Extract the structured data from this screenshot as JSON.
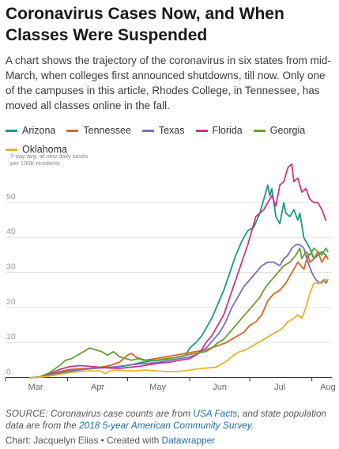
{
  "header": {
    "title": "Coronavirus Cases Now, and When Classes Were Suspended",
    "description": "A chart shows the trajectory of the coronavirus in six states from mid-March, when colleges first announced shutdowns, till now. Only one of the campuses in this article, Rhodes College, in Tennessee, has moved all classes online in the fall."
  },
  "chart_data": {
    "type": "line",
    "title": "Coronavirus Cases Now, and When Classes Were Suspended",
    "ylabel": "7-day avg. of new daily cases per 100K residents",
    "xlabel": "",
    "x_ticks": [
      "Mar",
      "Apr",
      "May",
      "Jun",
      "Jul",
      "Aug"
    ],
    "y_ticks": [
      0,
      10,
      20,
      30,
      40,
      50
    ],
    "ylim": [
      0,
      60
    ],
    "grid": true,
    "legend_position": "top",
    "x_unit": "days since Mar 1",
    "series": [
      {
        "name": "Arizona",
        "color": "#1a9a7e",
        "points": [
          [
            12,
            0
          ],
          [
            17,
            0.2
          ],
          [
            22,
            0.6
          ],
          [
            27,
            1.2
          ],
          [
            32,
            1.8
          ],
          [
            37,
            2.3
          ],
          [
            42,
            2.7
          ],
          [
            47,
            2.9
          ],
          [
            52,
            3.0
          ],
          [
            57,
            3.2
          ],
          [
            62,
            3.6
          ],
          [
            67,
            4.3
          ],
          [
            72,
            4.8
          ],
          [
            77,
            5.0
          ],
          [
            82,
            5.5
          ],
          [
            87,
            6.0
          ],
          [
            90,
            6.5
          ],
          [
            92,
            8.5
          ],
          [
            95,
            10
          ],
          [
            98,
            12
          ],
          [
            100,
            14
          ],
          [
            103,
            17
          ],
          [
            106,
            21
          ],
          [
            109,
            25
          ],
          [
            112,
            30
          ],
          [
            115,
            35
          ],
          [
            118,
            39
          ],
          [
            121,
            42
          ],
          [
            124,
            43
          ],
          [
            127,
            47
          ],
          [
            129,
            51
          ],
          [
            131,
            55
          ],
          [
            132,
            52
          ],
          [
            133,
            54
          ],
          [
            135,
            46
          ],
          [
            137,
            44
          ],
          [
            139,
            50
          ],
          [
            140,
            47
          ],
          [
            142,
            46
          ],
          [
            144,
            48
          ],
          [
            146,
            45
          ],
          [
            147,
            47
          ],
          [
            149,
            40
          ],
          [
            152,
            37
          ],
          [
            154,
            34
          ],
          [
            156,
            35
          ],
          [
            158,
            36
          ],
          [
            160,
            35
          ],
          [
            161,
            34
          ]
        ]
      },
      {
        "name": "Tennessee",
        "color": "#d9661f",
        "points": [
          [
            12,
            0
          ],
          [
            17,
            0.3
          ],
          [
            22,
            1.0
          ],
          [
            27,
            1.8
          ],
          [
            32,
            2.4
          ],
          [
            37,
            2.6
          ],
          [
            42,
            2.7
          ],
          [
            47,
            3.0
          ],
          [
            52,
            3.5
          ],
          [
            57,
            4.5
          ],
          [
            61,
            6.5
          ],
          [
            63,
            7.0
          ],
          [
            65,
            6.0
          ],
          [
            67,
            5.5
          ],
          [
            70,
            5.0
          ],
          [
            75,
            5.5
          ],
          [
            80,
            6.0
          ],
          [
            85,
            6.5
          ],
          [
            90,
            7.0
          ],
          [
            95,
            7.5
          ],
          [
            100,
            8.0
          ],
          [
            105,
            9.0
          ],
          [
            110,
            10
          ],
          [
            113,
            11
          ],
          [
            116,
            12
          ],
          [
            119,
            13
          ],
          [
            122,
            15
          ],
          [
            125,
            16
          ],
          [
            128,
            18
          ],
          [
            131,
            22
          ],
          [
            134,
            24
          ],
          [
            137,
            25
          ],
          [
            140,
            27
          ],
          [
            143,
            30
          ],
          [
            146,
            33
          ],
          [
            149,
            31
          ],
          [
            151,
            35
          ],
          [
            152,
            33
          ],
          [
            154,
            34
          ],
          [
            156,
            36
          ],
          [
            158,
            33
          ],
          [
            160,
            35
          ],
          [
            161,
            34
          ]
        ]
      },
      {
        "name": "Texas",
        "color": "#7b6ebd",
        "points": [
          [
            12,
            0
          ],
          [
            17,
            0.2
          ],
          [
            22,
            0.8
          ],
          [
            27,
            1.5
          ],
          [
            32,
            2.0
          ],
          [
            37,
            2.3
          ],
          [
            42,
            2.6
          ],
          [
            47,
            2.8
          ],
          [
            52,
            3.0
          ],
          [
            57,
            3.3
          ],
          [
            62,
            3.7
          ],
          [
            67,
            4.0
          ],
          [
            72,
            4.2
          ],
          [
            77,
            4.5
          ],
          [
            82,
            5.0
          ],
          [
            87,
            5.5
          ],
          [
            92,
            6.0
          ],
          [
            95,
            6.5
          ],
          [
            98,
            7.5
          ],
          [
            101,
            9.0
          ],
          [
            104,
            11
          ],
          [
            107,
            13
          ],
          [
            110,
            16
          ],
          [
            113,
            20
          ],
          [
            116,
            23
          ],
          [
            119,
            26
          ],
          [
            122,
            28
          ],
          [
            125,
            30
          ],
          [
            128,
            32
          ],
          [
            131,
            33
          ],
          [
            134,
            33
          ],
          [
            137,
            32
          ],
          [
            139,
            34
          ],
          [
            141,
            35
          ],
          [
            143,
            37
          ],
          [
            145,
            38
          ],
          [
            147,
            38
          ],
          [
            149,
            37
          ],
          [
            151,
            33
          ],
          [
            153,
            30
          ],
          [
            155,
            28
          ],
          [
            157,
            27
          ],
          [
            159,
            28
          ],
          [
            160,
            27
          ],
          [
            161,
            28
          ]
        ]
      },
      {
        "name": "Florida",
        "color": "#c9358a",
        "points": [
          [
            12,
            0
          ],
          [
            17,
            0.3
          ],
          [
            22,
            1.2
          ],
          [
            27,
            2.4
          ],
          [
            32,
            3.2
          ],
          [
            37,
            3.5
          ],
          [
            42,
            3.3
          ],
          [
            47,
            3.0
          ],
          [
            52,
            2.8
          ],
          [
            57,
            2.7
          ],
          [
            62,
            3.0
          ],
          [
            67,
            3.3
          ],
          [
            72,
            3.8
          ],
          [
            77,
            4.2
          ],
          [
            82,
            4.5
          ],
          [
            87,
            5.0
          ],
          [
            92,
            5.5
          ],
          [
            95,
            6.5
          ],
          [
            98,
            8.0
          ],
          [
            100,
            10
          ],
          [
            103,
            12
          ],
          [
            106,
            15
          ],
          [
            109,
            18
          ],
          [
            112,
            23
          ],
          [
            115,
            28
          ],
          [
            118,
            33
          ],
          [
            121,
            38
          ],
          [
            123,
            42
          ],
          [
            125,
            46
          ],
          [
            127,
            47
          ],
          [
            129,
            48
          ],
          [
            131,
            50
          ],
          [
            133,
            52
          ],
          [
            135,
            49
          ],
          [
            137,
            55
          ],
          [
            139,
            56
          ],
          [
            141,
            60
          ],
          [
            143,
            61
          ],
          [
            144,
            56
          ],
          [
            146,
            57
          ],
          [
            148,
            53
          ],
          [
            150,
            54
          ],
          [
            152,
            51
          ],
          [
            154,
            50
          ],
          [
            156,
            50
          ],
          [
            158,
            48
          ],
          [
            160,
            45
          ]
        ]
      },
      {
        "name": "Georgia",
        "color": "#6a9f32",
        "points": [
          [
            12,
            0
          ],
          [
            17,
            0.3
          ],
          [
            22,
            1.5
          ],
          [
            27,
            3.5
          ],
          [
            30,
            5.0
          ],
          [
            33,
            5.5
          ],
          [
            36,
            6.5
          ],
          [
            39,
            7.5
          ],
          [
            42,
            8.5
          ],
          [
            45,
            8.0
          ],
          [
            48,
            7.5
          ],
          [
            51,
            6.5
          ],
          [
            54,
            7.5
          ],
          [
            57,
            6.0
          ],
          [
            60,
            5.5
          ],
          [
            63,
            5.0
          ],
          [
            66,
            5.5
          ],
          [
            69,
            5.0
          ],
          [
            72,
            5.2
          ],
          [
            75,
            5.0
          ],
          [
            80,
            5.5
          ],
          [
            85,
            5.8
          ],
          [
            90,
            6.5
          ],
          [
            95,
            7.0
          ],
          [
            100,
            7.5
          ],
          [
            103,
            8.5
          ],
          [
            106,
            10
          ],
          [
            109,
            11
          ],
          [
            112,
            13
          ],
          [
            115,
            15
          ],
          [
            118,
            17
          ],
          [
            121,
            19
          ],
          [
            124,
            21
          ],
          [
            127,
            23
          ],
          [
            130,
            26
          ],
          [
            133,
            28
          ],
          [
            136,
            30
          ],
          [
            139,
            32
          ],
          [
            142,
            33
          ],
          [
            145,
            35
          ],
          [
            147,
            37
          ],
          [
            148,
            34
          ],
          [
            150,
            36
          ],
          [
            152,
            35
          ],
          [
            154,
            37
          ],
          [
            156,
            36
          ],
          [
            158,
            35
          ],
          [
            160,
            37
          ],
          [
            161,
            36
          ]
        ]
      },
      {
        "name": "Oklahoma",
        "color": "#e3b52a",
        "points": [
          [
            12,
            0
          ],
          [
            17,
            0.2
          ],
          [
            22,
            0.5
          ],
          [
            27,
            1.0
          ],
          [
            32,
            1.5
          ],
          [
            37,
            1.8
          ],
          [
            42,
            2.0
          ],
          [
            47,
            2.0
          ],
          [
            50,
            1.2
          ],
          [
            52,
            2.0
          ],
          [
            55,
            2.2
          ],
          [
            60,
            2.0
          ],
          [
            65,
            2.0
          ],
          [
            70,
            2.2
          ],
          [
            75,
            2.0
          ],
          [
            80,
            1.8
          ],
          [
            85,
            1.8
          ],
          [
            90,
            2.0
          ],
          [
            95,
            2.5
          ],
          [
            100,
            2.8
          ],
          [
            105,
            3.0
          ],
          [
            108,
            4.0
          ],
          [
            111,
            5.0
          ],
          [
            114,
            6.5
          ],
          [
            117,
            7.5
          ],
          [
            120,
            8.0
          ],
          [
            123,
            9.0
          ],
          [
            126,
            10
          ],
          [
            129,
            11
          ],
          [
            132,
            12
          ],
          [
            135,
            13
          ],
          [
            138,
            14
          ],
          [
            141,
            16
          ],
          [
            144,
            17
          ],
          [
            146,
            18
          ],
          [
            148,
            17
          ],
          [
            150,
            20
          ],
          [
            152,
            24
          ],
          [
            154,
            27
          ],
          [
            156,
            27
          ],
          [
            158,
            27
          ],
          [
            160,
            28
          ],
          [
            161,
            28
          ]
        ]
      }
    ]
  },
  "footer": {
    "source_prefix": "SOURCE: Coronavirus case counts are from ",
    "source_link1": "USA Facts",
    "source_mid": ", and state population data are from the ",
    "source_link2": "2018 5-year American Community Survey",
    "source_end": ".",
    "credit_prefix": "Chart: Jacquelyn Elias • Created with ",
    "credit_link": "Datawrapper"
  }
}
